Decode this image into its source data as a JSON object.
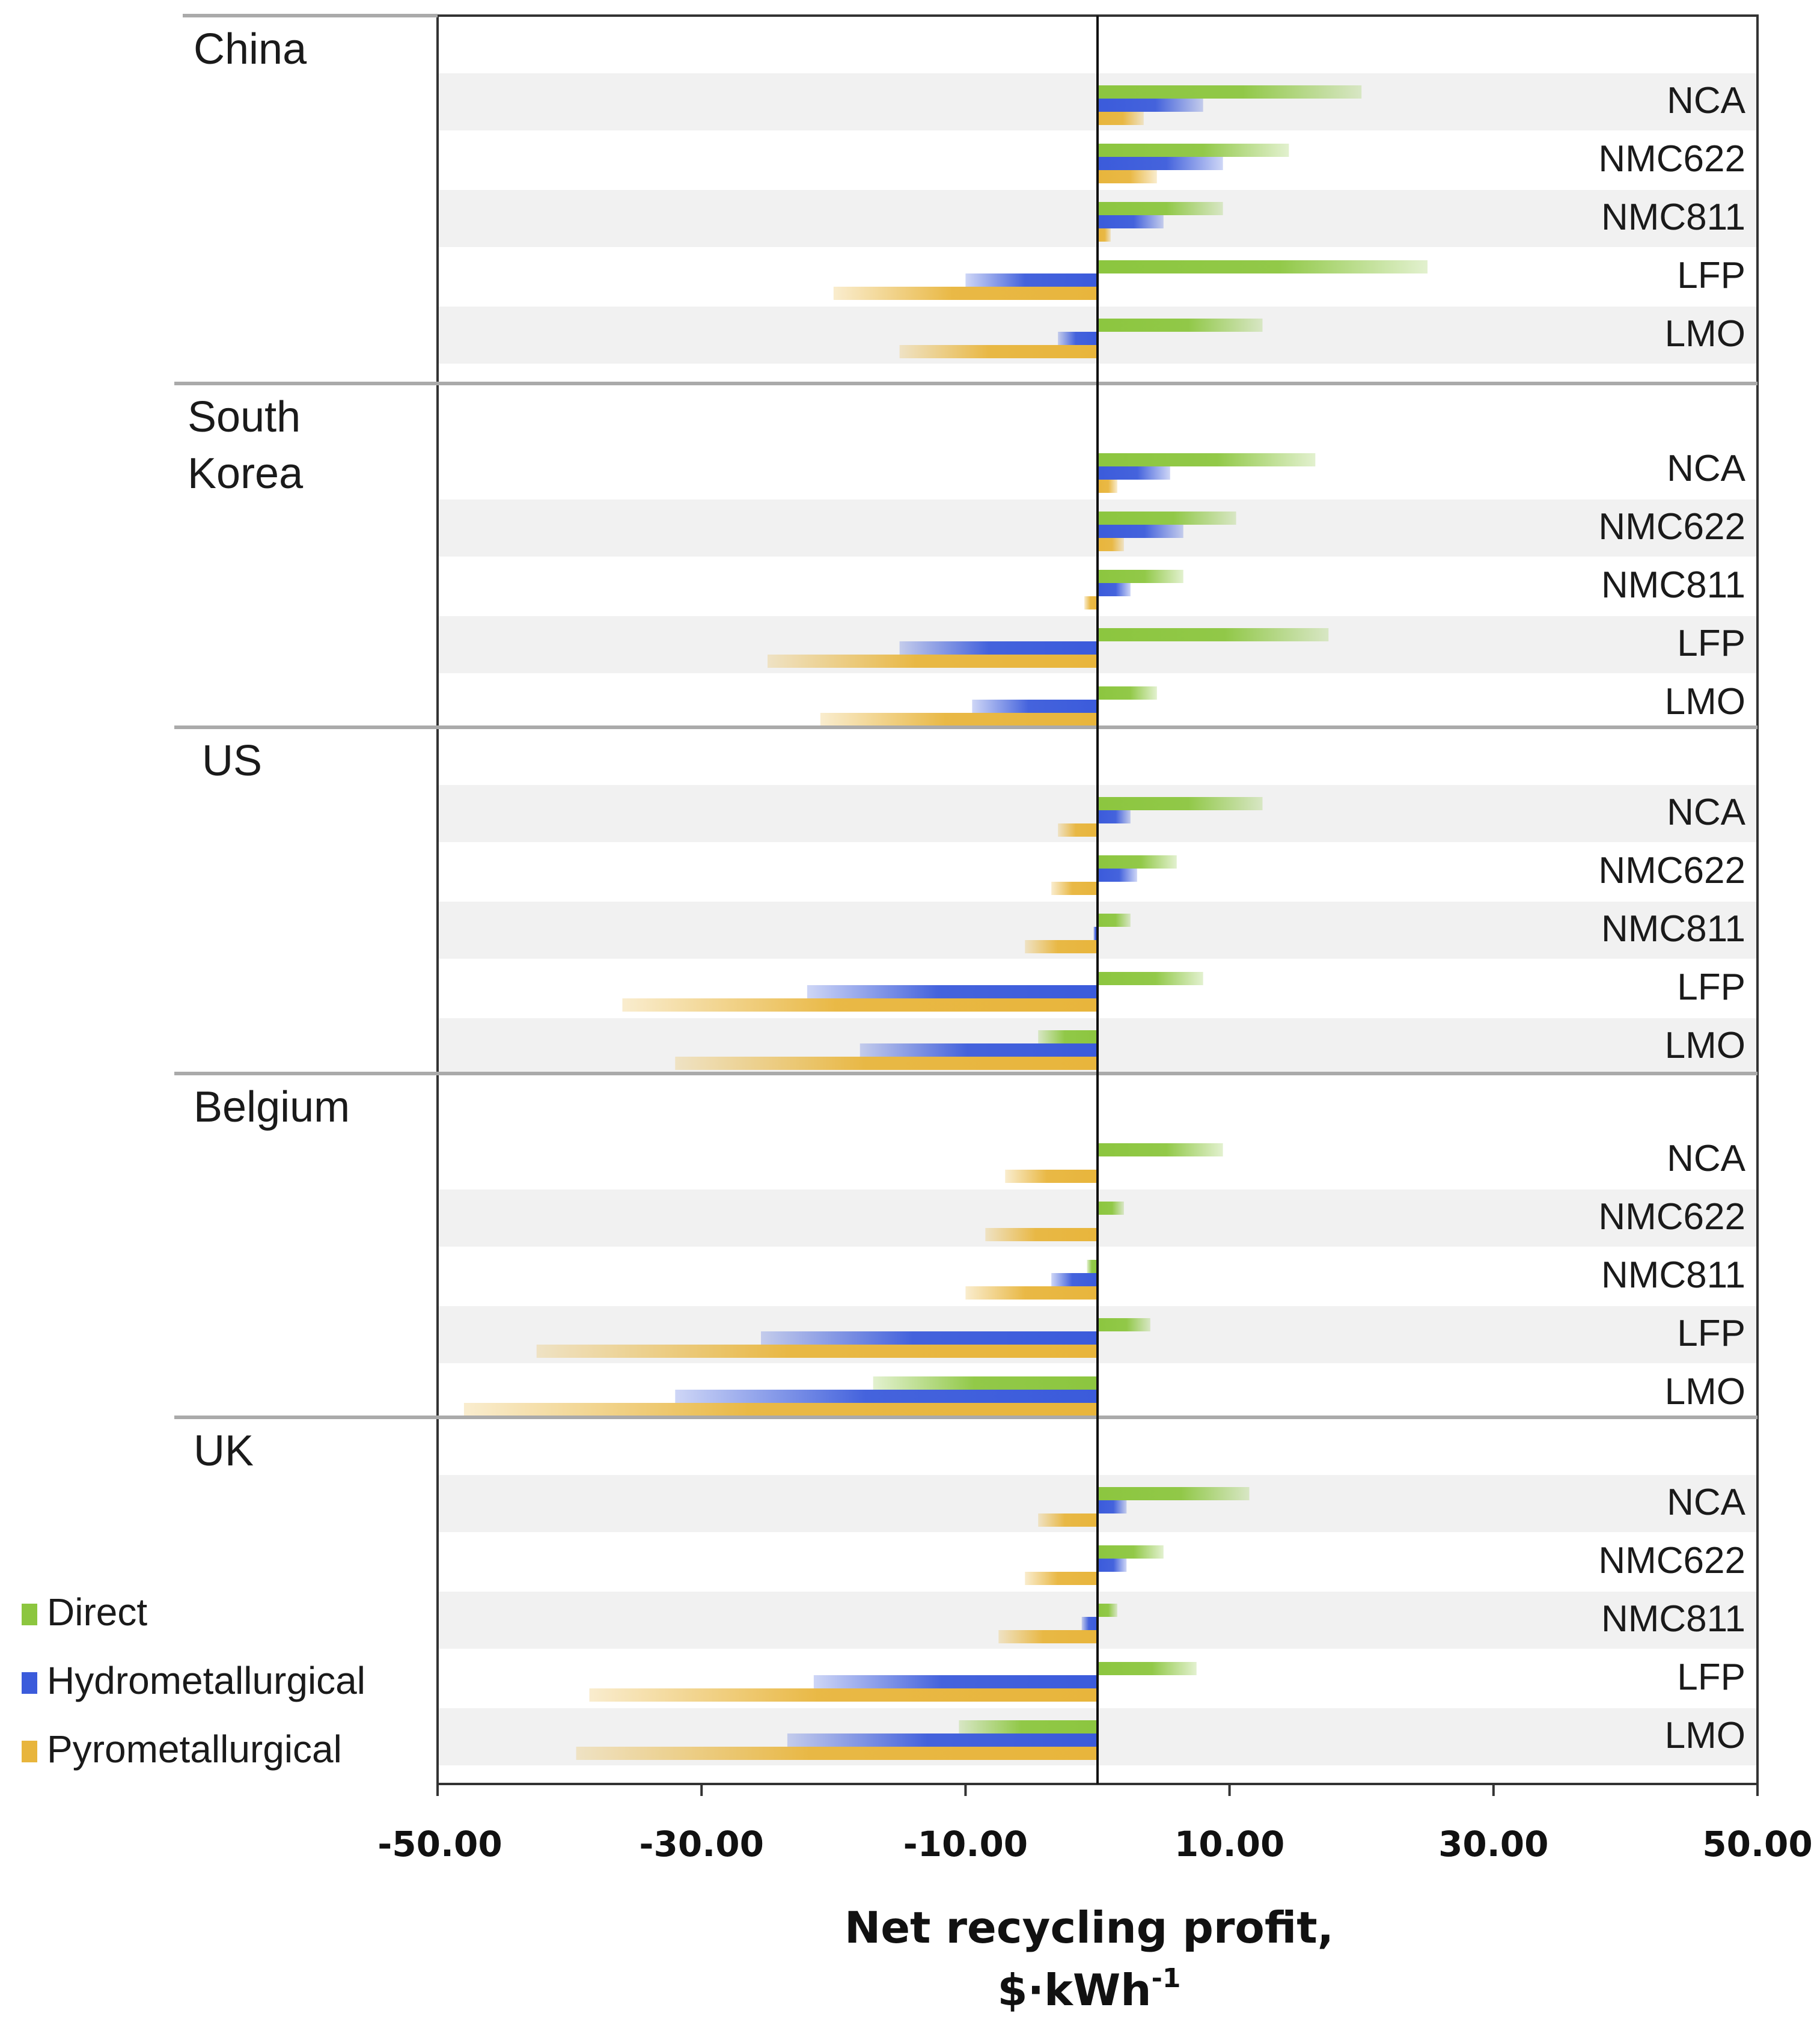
{
  "chart_data": {
    "type": "bar",
    "orientation": "horizontal",
    "xlabel": "Net recycling profit,",
    "xlabel_unit": "$·kWh",
    "xlabel_unit_sup": "-1",
    "xlim": [
      -50,
      50
    ],
    "xticks": [
      -50,
      -30,
      -10,
      10,
      30,
      50
    ],
    "xtick_labels": [
      "-50.00",
      "-30.00",
      "-10.00",
      "10.00",
      "30.00",
      "50.00"
    ],
    "legend_position": "bottom-left",
    "series": [
      {
        "key": "direct",
        "name": "Direct",
        "color": "#8cc63f"
      },
      {
        "key": "hydro",
        "name": "Hydrometallurgical",
        "color": "#3b5bdb"
      },
      {
        "key": "pyro",
        "name": "Pyrometallurgical",
        "color": "#e8b53c"
      }
    ],
    "groups": [
      {
        "region_lines": [
          "China"
        ],
        "categories": [
          {
            "label": "NCA",
            "direct": 20,
            "hydro": 8,
            "pyro": 3.5
          },
          {
            "label": "NMC622",
            "direct": 14.5,
            "hydro": 9.5,
            "pyro": 4.5
          },
          {
            "label": "NMC811",
            "direct": 9.5,
            "hydro": 5,
            "pyro": 1
          },
          {
            "label": "LFP",
            "direct": 25,
            "hydro": -10,
            "pyro": -20
          },
          {
            "label": "LMO",
            "direct": 12.5,
            "hydro": -3,
            "pyro": -15
          }
        ]
      },
      {
        "region_lines": [
          "South",
          "Korea"
        ],
        "categories": [
          {
            "label": "NCA",
            "direct": 16.5,
            "hydro": 5.5,
            "pyro": 1.5
          },
          {
            "label": "NMC622",
            "direct": 10.5,
            "hydro": 6.5,
            "pyro": 2
          },
          {
            "label": "NMC811",
            "direct": 6.5,
            "hydro": 2.5,
            "pyro": -1
          },
          {
            "label": "LFP",
            "direct": 17.5,
            "hydro": -15,
            "pyro": -25
          },
          {
            "label": "LMO",
            "direct": 4.5,
            "hydro": -9.5,
            "pyro": -21
          }
        ]
      },
      {
        "region_lines": [
          "US"
        ],
        "categories": [
          {
            "label": "NCA",
            "direct": 12.5,
            "hydro": 2.5,
            "pyro": -3
          },
          {
            "label": "NMC622",
            "direct": 6,
            "hydro": 3,
            "pyro": -3.5
          },
          {
            "label": "NMC811",
            "direct": 2.5,
            "hydro": -0.3,
            "pyro": -5.5
          },
          {
            "label": "LFP",
            "direct": 8,
            "hydro": -22,
            "pyro": -36
          },
          {
            "label": "LMO",
            "direct": -4.5,
            "hydro": -18,
            "pyro": -32
          }
        ]
      },
      {
        "region_lines": [
          "Belgium"
        ],
        "categories": [
          {
            "label": "NCA",
            "direct": 9.5,
            "hydro": 0,
            "pyro": -7
          },
          {
            "label": "NMC622",
            "direct": 2,
            "hydro": 0,
            "pyro": -8.5
          },
          {
            "label": "NMC811",
            "direct": -0.8,
            "hydro": -3.5,
            "pyro": -10
          },
          {
            "label": "LFP",
            "direct": 4,
            "hydro": -25.5,
            "pyro": -42.5
          },
          {
            "label": "LMO",
            "direct": -17,
            "hydro": -32,
            "pyro": -48
          }
        ]
      },
      {
        "region_lines": [
          "UK"
        ],
        "categories": [
          {
            "label": "NCA",
            "direct": 11.5,
            "hydro": 2.2,
            "pyro": -4.5
          },
          {
            "label": "NMC622",
            "direct": 5,
            "hydro": 2.2,
            "pyro": -5.5
          },
          {
            "label": "NMC811",
            "direct": 1.5,
            "hydro": -1.2,
            "pyro": -7.5
          },
          {
            "label": "LFP",
            "direct": 7.5,
            "hydro": -21.5,
            "pyro": -38.5
          },
          {
            "label": "LMO",
            "direct": -10.5,
            "hydro": -23.5,
            "pyro": -39.5
          }
        ]
      }
    ]
  }
}
